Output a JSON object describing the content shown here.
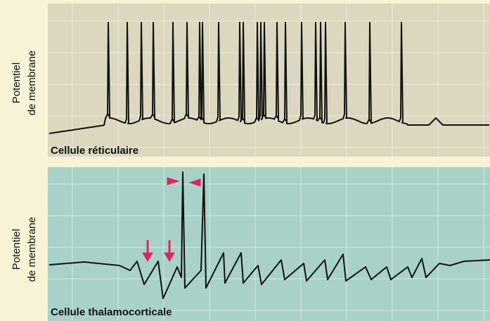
{
  "panels": [
    {
      "y_label": [
        "Potentiel",
        "de membrane"
      ],
      "caption": "Cellule réticulaire"
    },
    {
      "y_label": [
        "Potentiel",
        "de membrane"
      ],
      "caption": "Cellule thalamocorticale"
    }
  ]
}
